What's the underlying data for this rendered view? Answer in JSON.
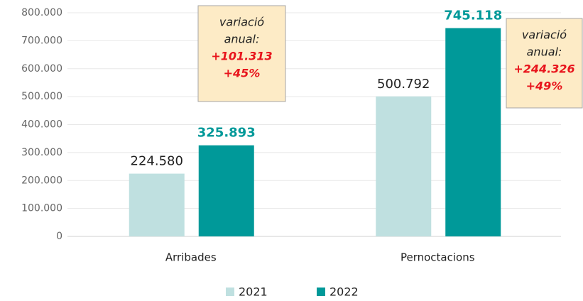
{
  "chart_data": {
    "type": "bar",
    "categories": [
      "Arribades",
      "Pernoctacions"
    ],
    "series": [
      {
        "name": "2021",
        "color": "#bfe0e0",
        "values": [
          224580,
          500792
        ],
        "value_labels": [
          "224.580",
          "500.792"
        ]
      },
      {
        "name": "2022",
        "color": "#009999",
        "values": [
          325893,
          745118
        ],
        "value_labels": [
          "325.893",
          "745.118"
        ]
      }
    ],
    "ylim": [
      0,
      800000
    ],
    "yticks": [
      0,
      {
        "value": 100000,
        "label": "100.000"
      },
      {
        "value": 200000,
        "label": "200.000"
      },
      {
        "value": 300000,
        "label": "300.000"
      },
      {
        "value": 400000,
        "label": "400.000"
      },
      {
        "value": 500000,
        "label": "500.000"
      },
      {
        "value": 600000,
        "label": "600.000"
      },
      {
        "value": 700000,
        "label": "700.000"
      },
      {
        "value": 800000,
        "label": "800.000"
      }
    ],
    "grid": true,
    "legend": "bottom",
    "annotations": [
      {
        "lines": [
          "variació",
          "anual:"
        ],
        "change": [
          "+101.313",
          "+45%"
        ]
      },
      {
        "lines": [
          "variació",
          "anual:"
        ],
        "change": [
          "+244.326",
          "+49%"
        ]
      }
    ]
  }
}
